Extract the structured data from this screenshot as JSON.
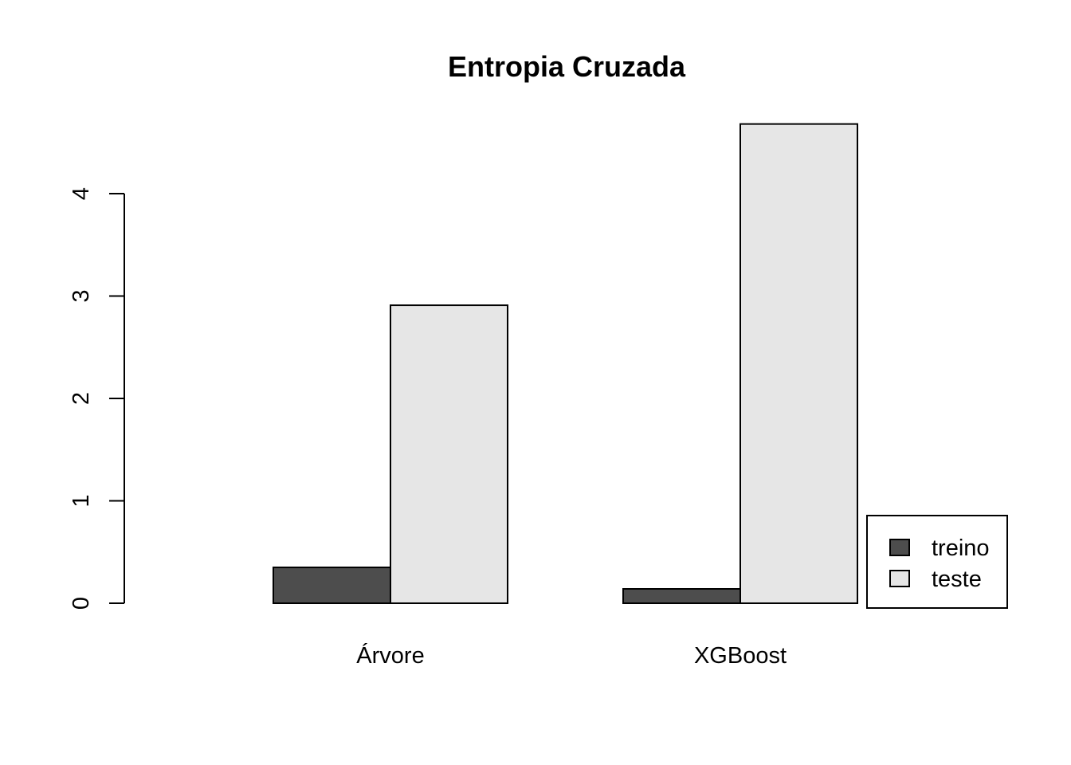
{
  "chart_data": {
    "type": "bar",
    "title": "Entropia Cruzada",
    "categories": [
      "Árvore",
      "XGBoost"
    ],
    "series": [
      {
        "name": "treino",
        "color": "#4D4D4D",
        "values": [
          0.35,
          0.14
        ]
      },
      {
        "name": "teste",
        "color": "#E6E6E6",
        "values": [
          2.91,
          4.68
        ]
      }
    ],
    "yticks": [
      0,
      1,
      2,
      3,
      4
    ],
    "ylim": [
      0,
      4.7
    ],
    "xlabel": "",
    "ylabel": "",
    "grid": false,
    "legend": {
      "position": "bottom-right",
      "entries": [
        "treino",
        "teste"
      ]
    },
    "colors": {
      "bar_border": "#000000",
      "axis": "#000000",
      "text": "#000000",
      "background": "#FFFFFF"
    }
  }
}
